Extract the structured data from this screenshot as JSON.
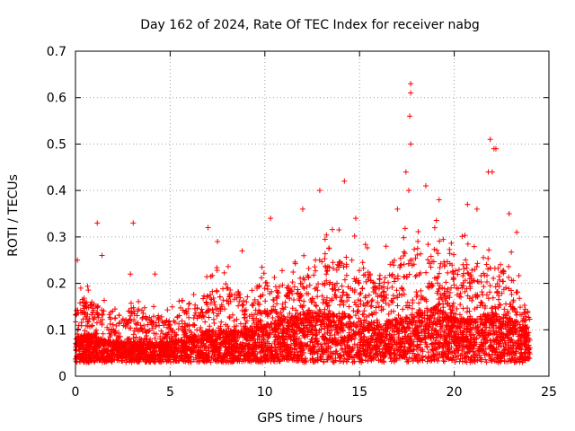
{
  "chart_data": {
    "type": "scatter",
    "title": "Day 162 of 2024, Rate Of TEC Index for receiver nabg",
    "xlabel": "GPS time / hours",
    "ylabel": "ROTI / TECUs",
    "xlim": [
      0,
      25
    ],
    "ylim": [
      0,
      0.7
    ],
    "grid": true,
    "legend": "none",
    "x_ticks": [
      0,
      5,
      10,
      15,
      20,
      25
    ],
    "x_tick_labels": [
      "0",
      "5",
      "10",
      "15",
      "20",
      "25"
    ],
    "y_ticks": [
      0,
      0.1,
      0.2,
      0.3,
      0.4,
      0.5,
      0.6,
      0.7
    ],
    "y_tick_labels": [
      "0",
      "0.1",
      "0.2",
      "0.3",
      "0.4",
      "0.5",
      "0.6",
      "0.7"
    ],
    "marker": "+",
    "series": [
      {
        "name": "ROTI",
        "color": "#ff0000",
        "envelope": {
          "x": [
            0,
            1,
            2,
            3,
            4,
            5,
            6,
            7,
            8,
            9,
            10,
            11,
            12,
            13,
            14,
            15,
            16,
            17,
            18,
            19,
            20,
            21,
            22,
            23,
            24
          ],
          "upper": [
            0.22,
            0.2,
            0.15,
            0.19,
            0.17,
            0.15,
            0.18,
            0.23,
            0.24,
            0.22,
            0.25,
            0.24,
            0.27,
            0.32,
            0.33,
            0.3,
            0.26,
            0.33,
            0.35,
            0.34,
            0.3,
            0.31,
            0.3,
            0.27,
            0.15
          ],
          "typical": [
            0.07,
            0.07,
            0.06,
            0.06,
            0.06,
            0.06,
            0.07,
            0.08,
            0.08,
            0.08,
            0.09,
            0.1,
            0.11,
            0.11,
            0.11,
            0.1,
            0.09,
            0.1,
            0.11,
            0.12,
            0.1,
            0.1,
            0.11,
            0.1,
            0.08
          ]
        },
        "peaks": [
          {
            "x": 0.1,
            "y": 0.25
          },
          {
            "x": 1.15,
            "y": 0.33
          },
          {
            "x": 1.4,
            "y": 0.26
          },
          {
            "x": 3.05,
            "y": 0.33
          },
          {
            "x": 2.9,
            "y": 0.22
          },
          {
            "x": 4.2,
            "y": 0.22
          },
          {
            "x": 7.0,
            "y": 0.32
          },
          {
            "x": 7.5,
            "y": 0.29
          },
          {
            "x": 8.8,
            "y": 0.27
          },
          {
            "x": 10.3,
            "y": 0.34
          },
          {
            "x": 12.0,
            "y": 0.36
          },
          {
            "x": 12.9,
            "y": 0.4
          },
          {
            "x": 14.2,
            "y": 0.42
          },
          {
            "x": 14.8,
            "y": 0.34
          },
          {
            "x": 16.4,
            "y": 0.28
          },
          {
            "x": 17.0,
            "y": 0.36
          },
          {
            "x": 17.45,
            "y": 0.44
          },
          {
            "x": 17.7,
            "y": 0.63
          },
          {
            "x": 17.7,
            "y": 0.61
          },
          {
            "x": 17.65,
            "y": 0.56
          },
          {
            "x": 17.7,
            "y": 0.5
          },
          {
            "x": 17.6,
            "y": 0.4
          },
          {
            "x": 18.5,
            "y": 0.41
          },
          {
            "x": 19.2,
            "y": 0.38
          },
          {
            "x": 20.7,
            "y": 0.37
          },
          {
            "x": 21.2,
            "y": 0.36
          },
          {
            "x": 21.8,
            "y": 0.44
          },
          {
            "x": 22.0,
            "y": 0.44
          },
          {
            "x": 21.9,
            "y": 0.51
          },
          {
            "x": 22.1,
            "y": 0.49
          },
          {
            "x": 22.2,
            "y": 0.49
          },
          {
            "x": 22.9,
            "y": 0.35
          },
          {
            "x": 23.3,
            "y": 0.31
          }
        ]
      }
    ]
  }
}
